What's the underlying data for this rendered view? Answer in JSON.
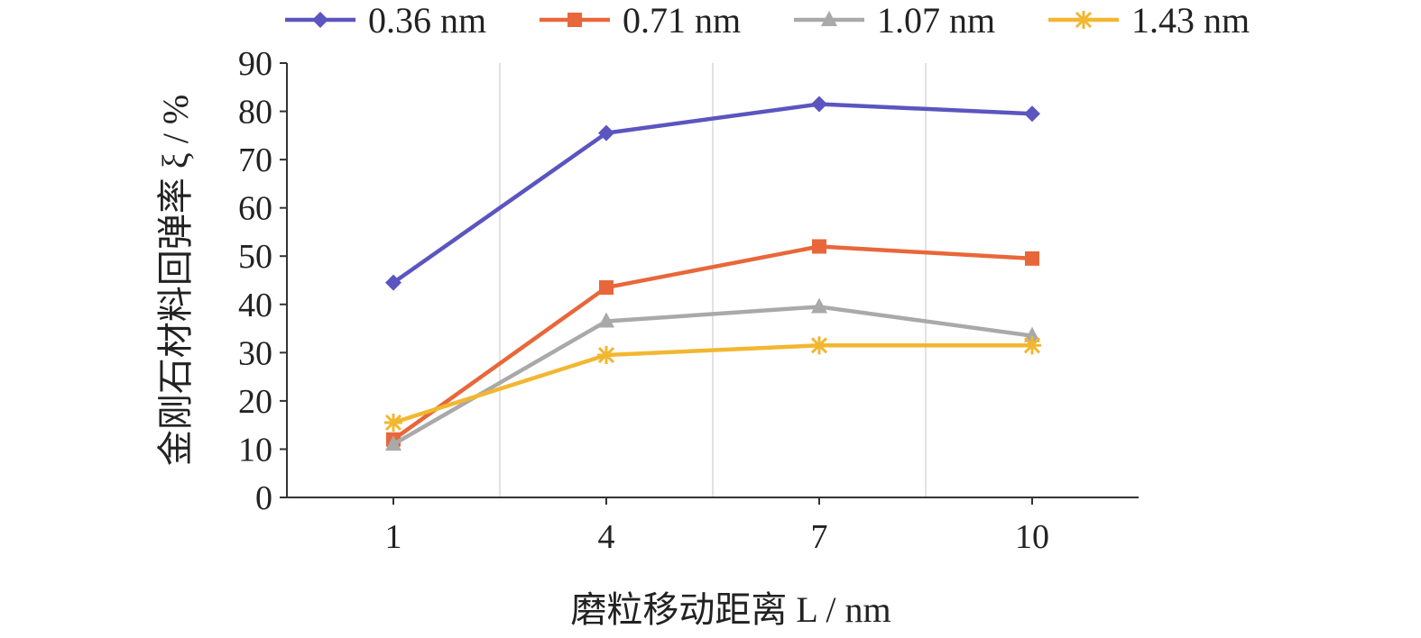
{
  "chart_data": {
    "type": "line",
    "title": "",
    "xlabel": "磨粒移动距离 L / nm",
    "ylabel": "金刚石材料回弹率 ξ / %",
    "x": [
      "1",
      "4",
      "7",
      "10"
    ],
    "ylim": [
      0,
      90
    ],
    "yticks": [
      "0",
      "10",
      "20",
      "30",
      "40",
      "50",
      "60",
      "70",
      "80",
      "90"
    ],
    "grid": "vertical",
    "legend_position": "top",
    "series": [
      {
        "name": "0.36 nm",
        "color": "#5b55c0",
        "marker": "diamond",
        "values": [
          44.5,
          75.5,
          81.5,
          79.5
        ]
      },
      {
        "name": "0.71 nm",
        "color": "#e8673a",
        "marker": "square",
        "values": [
          12,
          43.5,
          52,
          49.5
        ]
      },
      {
        "name": "1.07 nm",
        "color": "#a9a9a9",
        "marker": "triangle",
        "values": [
          11,
          36.5,
          39.5,
          33.5
        ]
      },
      {
        "name": "1.43 nm",
        "color": "#f2b730",
        "marker": "star",
        "values": [
          15.5,
          29.5,
          31.5,
          31.5
        ]
      }
    ]
  }
}
